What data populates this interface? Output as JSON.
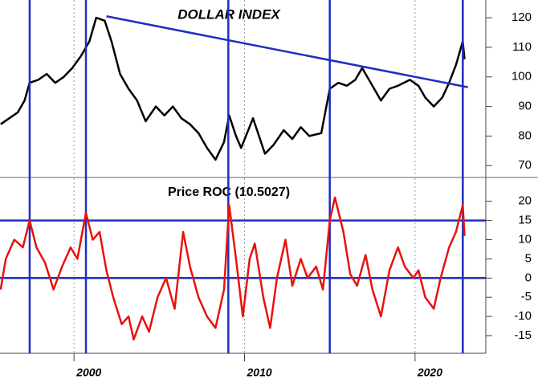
{
  "chart_data": [
    {
      "type": "line",
      "title": "DOLLAR INDEX",
      "color": "#000000",
      "x": [
        1995.7,
        1996.2,
        1996.7,
        1997.1,
        1997.4,
        1997.9,
        1998.4,
        1998.9,
        1999.4,
        1999.9,
        2000.4,
        2000.9,
        2001.3,
        2001.8,
        2002.2,
        2002.7,
        2003.2,
        2003.7,
        2004.2,
        2004.8,
        2005.3,
        2005.8,
        2006.3,
        2006.8,
        2007.3,
        2007.8,
        2008.3,
        2008.8,
        2009.1,
        2009.5,
        2009.8,
        2010.5,
        2011.2,
        2011.7,
        2012.3,
        2012.8,
        2013.3,
        2013.8,
        2014.5,
        2015.0,
        2015.5,
        2016.0,
        2016.5,
        2016.9,
        2017.5,
        2018.0,
        2018.5,
        2019.0,
        2019.7,
        2020.2,
        2020.6,
        2021.1,
        2021.6,
        2022.0,
        2022.4,
        2022.8,
        2022.9
      ],
      "values": [
        84,
        86,
        88,
        92,
        98,
        99,
        101,
        98,
        100,
        103,
        107,
        112,
        120,
        119,
        112,
        101,
        96,
        92,
        85,
        90,
        87,
        90,
        86,
        84,
        81,
        76,
        72,
        78,
        87,
        80,
        76,
        86,
        74,
        77,
        82,
        79,
        83,
        80,
        81,
        96,
        98,
        97,
        99,
        103,
        97,
        92,
        96,
        97,
        99,
        97,
        93,
        90,
        93,
        98,
        104,
        112,
        106
      ],
      "trendline": {
        "x": [
          2001.9,
          2023.1
        ],
        "values": [
          120.5,
          96.5
        ]
      },
      "vlines": [
        1997.4,
        2000.7,
        2009.05,
        2015.0,
        2022.8
      ],
      "ylim": [
        66,
        126
      ],
      "yticks": [
        70,
        80,
        90,
        100,
        110,
        120
      ],
      "line_color": "#1f2fbf"
    },
    {
      "type": "line",
      "title": "Price ROC (10.5027)",
      "color": "#e8120c",
      "x": [
        1995.7,
        1996.0,
        1996.5,
        1997.0,
        1997.4,
        1997.8,
        1998.3,
        1998.8,
        1999.3,
        1999.8,
        2000.2,
        2000.7,
        2001.1,
        2001.5,
        2001.9,
        2002.3,
        2002.8,
        2003.2,
        2003.5,
        2004.0,
        2004.4,
        2004.9,
        2005.4,
        2005.9,
        2006.4,
        2006.8,
        2007.3,
        2007.8,
        2008.3,
        2008.8,
        2009.1,
        2009.5,
        2009.9,
        2010.3,
        2010.6,
        2011.1,
        2011.5,
        2011.9,
        2012.4,
        2012.8,
        2013.3,
        2013.7,
        2014.2,
        2014.6,
        2015.0,
        2015.3,
        2015.8,
        2016.2,
        2016.6,
        2017.1,
        2017.5,
        2018.0,
        2018.5,
        2019.0,
        2019.4,
        2019.9,
        2020.2,
        2020.6,
        2021.1,
        2021.5,
        2022.0,
        2022.4,
        2022.8,
        2022.9
      ],
      "values": [
        -3,
        5,
        10,
        8,
        15,
        8,
        4,
        -3,
        3,
        8,
        5,
        17,
        10,
        12,
        2,
        -5,
        -12,
        -10,
        -16,
        -10,
        -14,
        -5,
        0,
        -8,
        12,
        3,
        -5,
        -10,
        -13,
        -3,
        19,
        5,
        -10,
        5,
        9,
        -5,
        -13,
        0,
        10,
        -2,
        5,
        0,
        3,
        -3,
        15,
        21,
        12,
        1,
        -2,
        6,
        -3,
        -10,
        2,
        8,
        3,
        0,
        2,
        -5,
        -8,
        0,
        8,
        12,
        19,
        11
      ],
      "hlines": [
        15,
        0
      ],
      "ylim": [
        -19.6,
        26
      ],
      "yticks": [
        -15,
        -10,
        -5,
        0,
        5,
        10,
        15,
        20
      ],
      "line_color": "#1f2fbf",
      "xlim": [
        1995.66,
        2024.15
      ],
      "xticks": [
        {
          "value": 2000,
          "label": "2000"
        },
        {
          "value": 2010,
          "label": "2010"
        },
        {
          "value": 2020,
          "label": "2020"
        }
      ]
    }
  ]
}
